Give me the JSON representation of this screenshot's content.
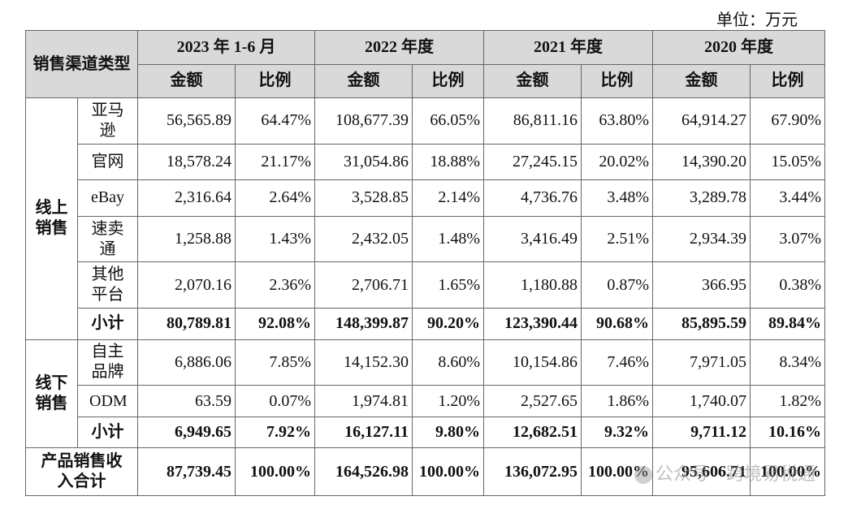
{
  "unit_label": "单位：万元",
  "header": {
    "channel": "销售渠道类型",
    "periods": [
      "2023 年 1-6 月",
      "2022 年度",
      "2021 年度",
      "2020 年度"
    ],
    "amount": "金额",
    "ratio": "比例"
  },
  "online": {
    "label": "线上销售",
    "rows": [
      {
        "channel": "亚马逊",
        "values": [
          "56,565.89",
          "64.47%",
          "108,677.39",
          "66.05%",
          "86,811.16",
          "63.80%",
          "64,914.27",
          "67.90%"
        ]
      },
      {
        "channel": "官网",
        "values": [
          "18,578.24",
          "21.17%",
          "31,054.86",
          "18.88%",
          "27,245.15",
          "20.02%",
          "14,390.20",
          "15.05%"
        ]
      },
      {
        "channel": "eBay",
        "values": [
          "2,316.64",
          "2.64%",
          "3,528.85",
          "2.14%",
          "4,736.76",
          "3.48%",
          "3,289.78",
          "3.44%"
        ]
      },
      {
        "channel": "速卖通",
        "values": [
          "1,258.88",
          "1.43%",
          "2,432.05",
          "1.48%",
          "3,416.49",
          "2.51%",
          "2,934.39",
          "3.07%"
        ]
      },
      {
        "channel": "其他平台",
        "values": [
          "2,070.16",
          "2.36%",
          "2,706.71",
          "1.65%",
          "1,180.88",
          "0.87%",
          "366.95",
          "0.38%"
        ]
      }
    ],
    "subtotal": {
      "label": "小计",
      "values": [
        "80,789.81",
        "92.08%",
        "148,399.87",
        "90.20%",
        "123,390.44",
        "90.68%",
        "85,895.59",
        "89.84%"
      ]
    }
  },
  "offline": {
    "label": "线下销售",
    "rows": [
      {
        "channel": "自主品牌",
        "values": [
          "6,886.06",
          "7.85%",
          "14,152.30",
          "8.60%",
          "10,154.86",
          "7.46%",
          "7,971.05",
          "8.34%"
        ]
      },
      {
        "channel": "ODM",
        "values": [
          "63.59",
          "0.07%",
          "1,974.81",
          "1.20%",
          "2,527.65",
          "1.86%",
          "1,740.07",
          "1.82%"
        ]
      }
    ],
    "subtotal": {
      "label": "小计",
      "values": [
        "6,949.65",
        "7.92%",
        "16,127.11",
        "9.80%",
        "12,682.51",
        "9.32%",
        "9,711.12",
        "10.16%"
      ]
    }
  },
  "total": {
    "label": "产品销售收入合计",
    "values": [
      "87,739.45",
      "100.00%",
      "164,526.98",
      "100.00%",
      "136,072.95",
      "100.00%",
      "95,606.71",
      "100.00%"
    ]
  },
  "watermark": "公众号 · 跨境易税通"
}
